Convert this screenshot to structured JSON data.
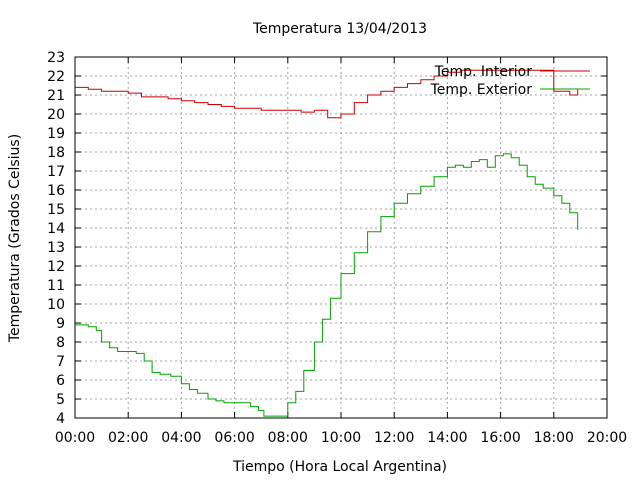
{
  "chart_data": {
    "type": "line",
    "title": "Temperatura 13/04/2013",
    "xlabel": "Tiempo (Hora Local Argentina)",
    "ylabel": "Temperatura (Grados Celsius)",
    "xlim": [
      0,
      20
    ],
    "ylim": [
      4,
      23
    ],
    "x_ticks": [
      0,
      2,
      4,
      6,
      8,
      10,
      12,
      14,
      16,
      18,
      20
    ],
    "x_tick_labels": [
      "00:00",
      "02:00",
      "04:00",
      "06:00",
      "08:00",
      "10:00",
      "12:00",
      "14:00",
      "16:00",
      "18:00",
      "20:00"
    ],
    "y_ticks": [
      4,
      5,
      6,
      7,
      8,
      9,
      10,
      11,
      12,
      13,
      14,
      15,
      16,
      17,
      18,
      19,
      20,
      21,
      22,
      23
    ],
    "grid": true,
    "legend_position": "top-right",
    "series": [
      {
        "name": "Temp. Interior",
        "color": "#cc0000",
        "x": [
          0.0,
          0.5,
          1.0,
          1.5,
          2.0,
          2.5,
          3.0,
          3.5,
          4.0,
          4.5,
          5.0,
          5.5,
          6.0,
          6.5,
          7.0,
          7.5,
          8.0,
          8.5,
          9.0,
          9.5,
          10.0,
          10.5,
          11.0,
          11.5,
          12.0,
          12.5,
          13.0,
          13.5,
          14.0,
          14.5,
          15.0,
          15.5,
          16.0,
          16.5,
          17.0,
          17.5,
          18.0,
          18.3,
          18.6,
          18.9
        ],
        "y": [
          21.4,
          21.3,
          21.2,
          21.2,
          21.1,
          20.9,
          20.9,
          20.8,
          20.7,
          20.6,
          20.5,
          20.4,
          20.3,
          20.3,
          20.2,
          20.2,
          20.2,
          20.1,
          20.2,
          19.8,
          20.0,
          20.6,
          21.0,
          21.2,
          21.4,
          21.6,
          21.8,
          22.0,
          22.2,
          22.3,
          22.3,
          22.3,
          22.3,
          22.3,
          22.3,
          22.3,
          21.2,
          21.2,
          21.0,
          21.3
        ]
      },
      {
        "name": "Temp. Exterior",
        "color": "#00a000",
        "x": [
          0.0,
          0.5,
          0.8,
          1.0,
          1.3,
          1.6,
          2.0,
          2.3,
          2.6,
          2.9,
          3.2,
          3.6,
          4.0,
          4.3,
          4.6,
          5.0,
          5.3,
          5.6,
          6.0,
          6.3,
          6.6,
          6.9,
          7.1,
          7.3,
          7.6,
          8.0,
          8.3,
          8.6,
          9.0,
          9.3,
          9.6,
          10.0,
          10.5,
          11.0,
          11.5,
          12.0,
          12.5,
          13.0,
          13.5,
          14.0,
          14.3,
          14.6,
          14.9,
          15.2,
          15.5,
          15.8,
          16.1,
          16.4,
          16.7,
          17.0,
          17.3,
          17.6,
          18.0,
          18.3,
          18.6,
          18.9
        ],
        "y": [
          8.9,
          8.8,
          8.6,
          8.0,
          7.7,
          7.5,
          7.5,
          7.4,
          7.0,
          6.4,
          6.3,
          6.2,
          5.8,
          5.5,
          5.3,
          5.0,
          4.9,
          4.8,
          4.8,
          4.8,
          4.6,
          4.4,
          4.1,
          4.1,
          4.1,
          4.8,
          5.4,
          6.5,
          8.0,
          9.2,
          10.3,
          11.6,
          12.7,
          13.8,
          14.6,
          15.3,
          15.8,
          16.2,
          16.7,
          17.2,
          17.3,
          17.2,
          17.5,
          17.6,
          17.2,
          17.8,
          17.9,
          17.7,
          17.3,
          16.7,
          16.3,
          16.1,
          15.7,
          15.3,
          14.8,
          13.9
        ]
      }
    ]
  }
}
